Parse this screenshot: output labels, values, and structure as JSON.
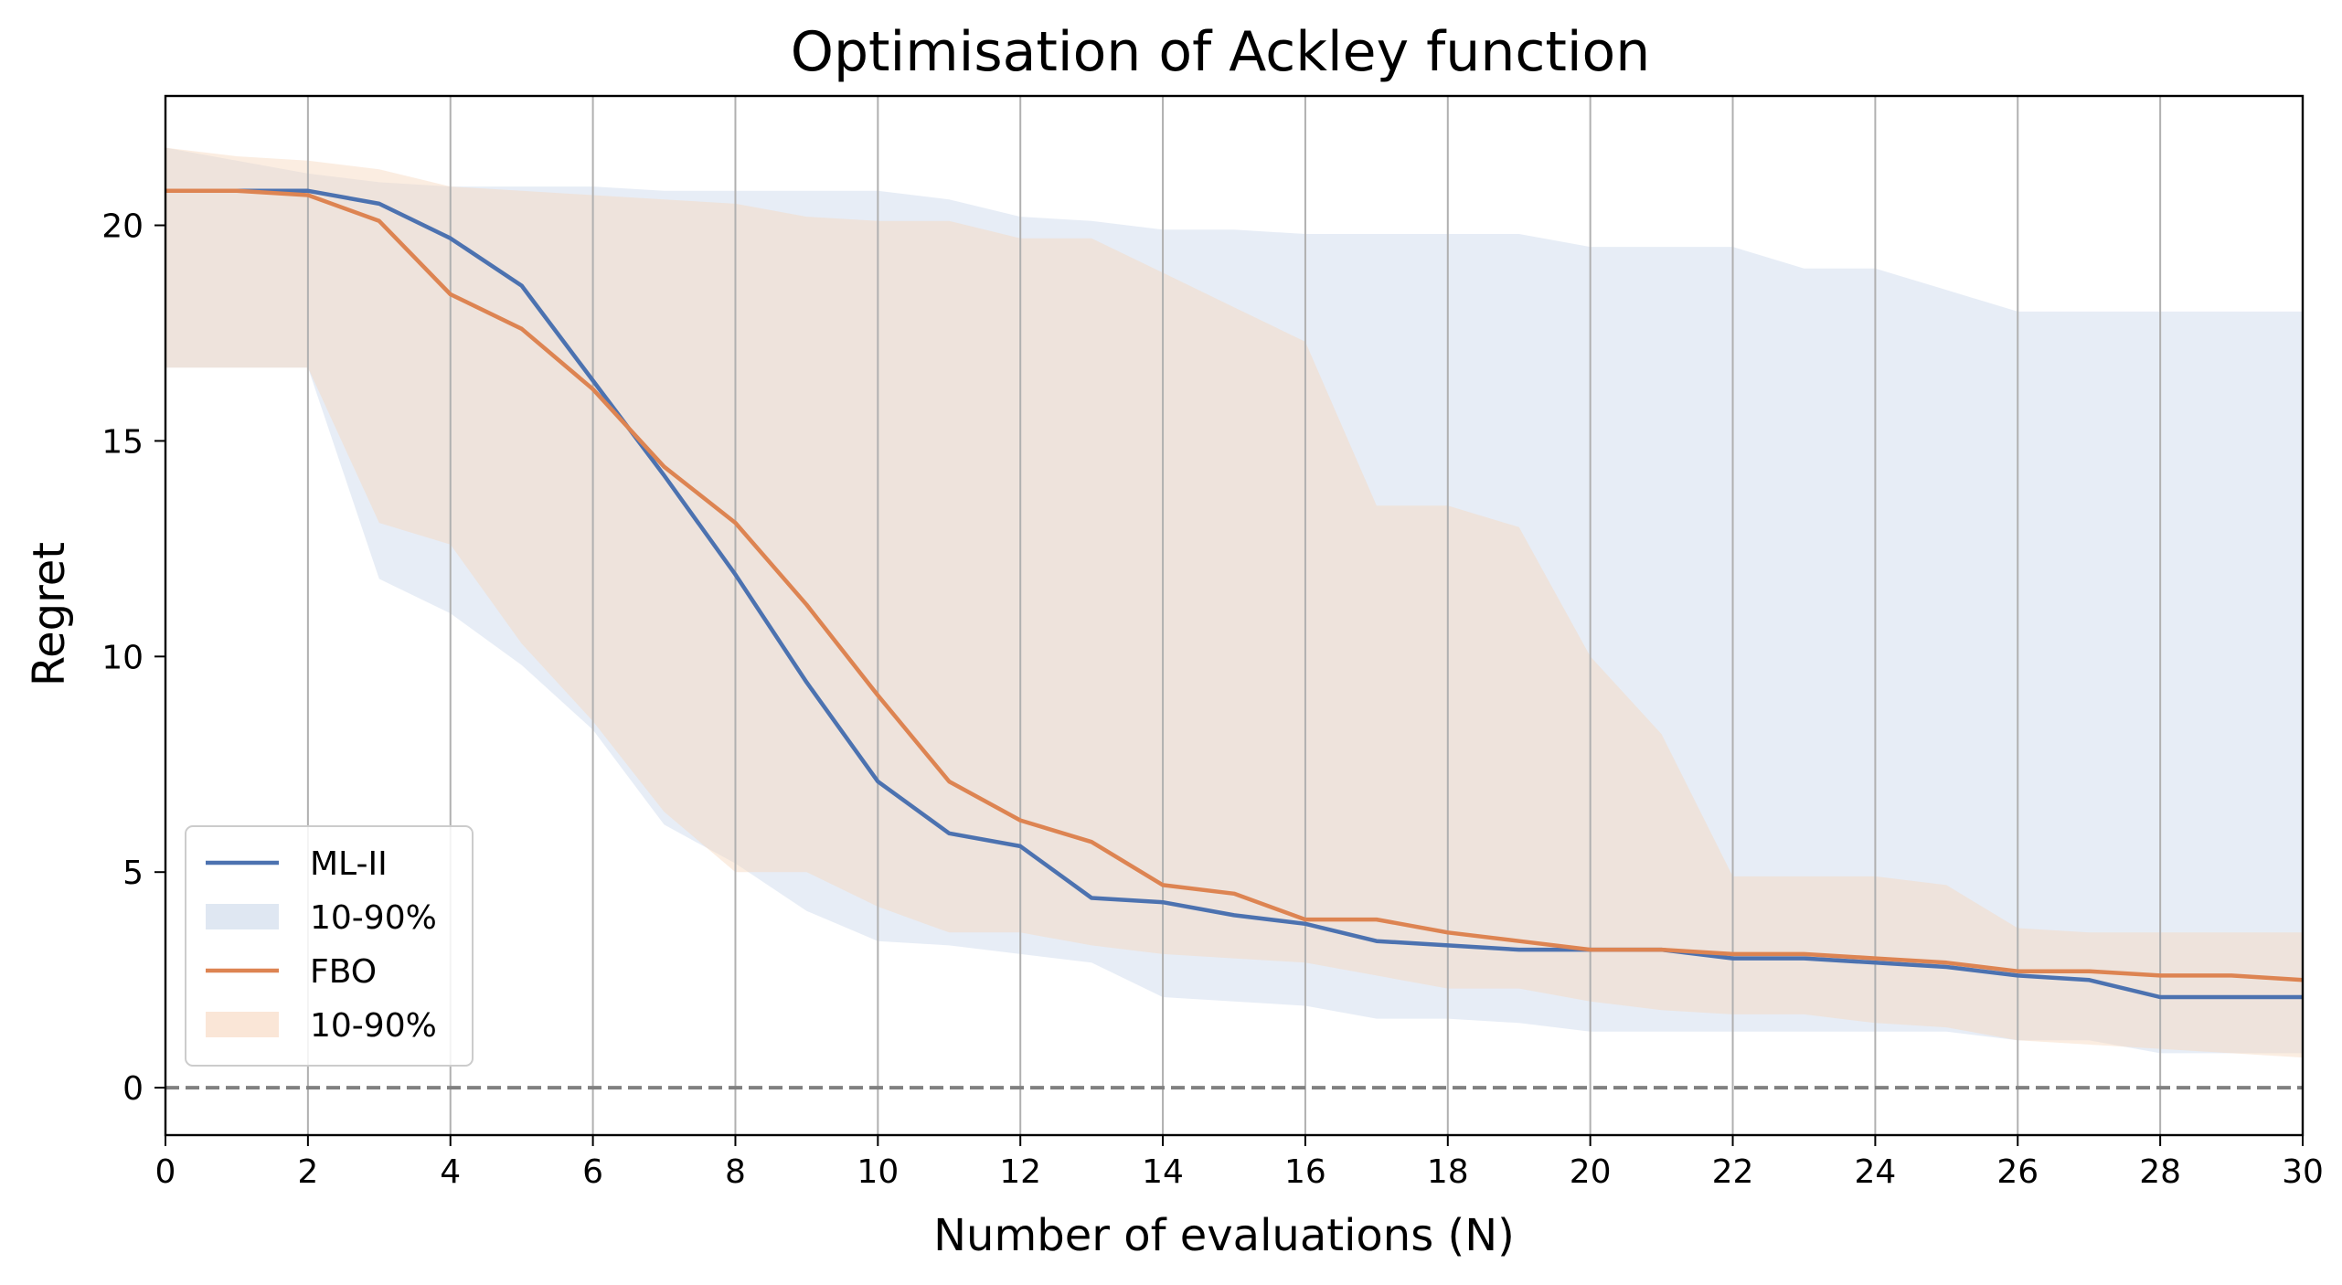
{
  "chart_data": {
    "type": "line",
    "title": "Optimisation of Ackley function",
    "xlabel": "Number of evaluations (N)",
    "ylabel": "Regret",
    "xlim": [
      0,
      30
    ],
    "ylim": [
      -1.1,
      23
    ],
    "xticks": [
      "0",
      "2",
      "4",
      "6",
      "8",
      "10",
      "12",
      "14",
      "16",
      "18",
      "20",
      "22",
      "24",
      "26",
      "28",
      "30"
    ],
    "yticks": [
      "0",
      "5",
      "10",
      "15",
      "20"
    ],
    "x_grid": true,
    "y_grid": false,
    "legend_position": "lower-left",
    "reference_line": {
      "y": 0,
      "style": "dashed",
      "color": "#808080"
    },
    "x": [
      0,
      1,
      2,
      3,
      4,
      5,
      6,
      7,
      8,
      9,
      10,
      11,
      12,
      13,
      14,
      15,
      16,
      17,
      18,
      19,
      20,
      21,
      22,
      23,
      24,
      25,
      26,
      27,
      28,
      29,
      30
    ],
    "series": [
      {
        "name": "ML-II",
        "color": "#4c72b0",
        "values": [
          20.8,
          20.8,
          20.8,
          20.5,
          19.7,
          18.6,
          16.4,
          14.2,
          11.9,
          9.4,
          7.1,
          5.9,
          5.6,
          4.4,
          4.3,
          4.0,
          3.8,
          3.4,
          3.3,
          3.2,
          3.2,
          3.2,
          3.0,
          3.0,
          2.9,
          2.8,
          2.6,
          2.5,
          2.1,
          2.1,
          2.1
        ],
        "band_label": "10-90%",
        "band_color": "#c9d7ea",
        "band_lower": [
          16.7,
          16.7,
          16.7,
          11.8,
          11.0,
          9.8,
          8.3,
          6.1,
          5.2,
          4.1,
          3.4,
          3.3,
          3.1,
          2.9,
          2.1,
          2.0,
          1.9,
          1.6,
          1.6,
          1.5,
          1.3,
          1.3,
          1.3,
          1.3,
          1.3,
          1.3,
          1.1,
          1.1,
          0.8,
          0.8,
          0.8
        ],
        "band_upper": [
          21.8,
          21.5,
          21.2,
          21.0,
          20.9,
          20.9,
          20.9,
          20.8,
          20.8,
          20.8,
          20.8,
          20.6,
          20.2,
          20.1,
          19.9,
          19.9,
          19.8,
          19.8,
          19.8,
          19.8,
          19.5,
          19.5,
          19.5,
          19.0,
          19.0,
          18.5,
          18.0,
          18.0,
          18.0,
          18.0,
          18.0
        ]
      },
      {
        "name": "FBO",
        "color": "#dd8452",
        "values": [
          20.8,
          20.8,
          20.7,
          20.1,
          18.4,
          17.6,
          16.2,
          14.4,
          13.1,
          11.2,
          9.1,
          7.1,
          6.2,
          5.7,
          4.7,
          4.5,
          3.9,
          3.9,
          3.6,
          3.4,
          3.2,
          3.2,
          3.1,
          3.1,
          3.0,
          2.9,
          2.7,
          2.7,
          2.6,
          2.6,
          2.5
        ],
        "band_label": "10-90%",
        "band_color": "#f6d6bd",
        "band_lower": [
          16.7,
          16.7,
          16.7,
          13.1,
          12.6,
          10.3,
          8.5,
          6.4,
          5.0,
          5.0,
          4.2,
          3.6,
          3.6,
          3.3,
          3.1,
          3.0,
          2.9,
          2.6,
          2.3,
          2.3,
          2.0,
          1.8,
          1.7,
          1.7,
          1.5,
          1.4,
          1.1,
          1.0,
          0.9,
          0.8,
          0.7
        ],
        "band_upper": [
          21.8,
          21.6,
          21.5,
          21.3,
          20.9,
          20.8,
          20.7,
          20.6,
          20.5,
          20.2,
          20.1,
          20.1,
          19.7,
          19.7,
          18.9,
          18.1,
          17.3,
          13.5,
          13.5,
          13.0,
          10.0,
          8.2,
          4.9,
          4.9,
          4.9,
          4.7,
          3.7,
          3.6,
          3.6,
          3.6,
          3.6
        ]
      }
    ]
  }
}
